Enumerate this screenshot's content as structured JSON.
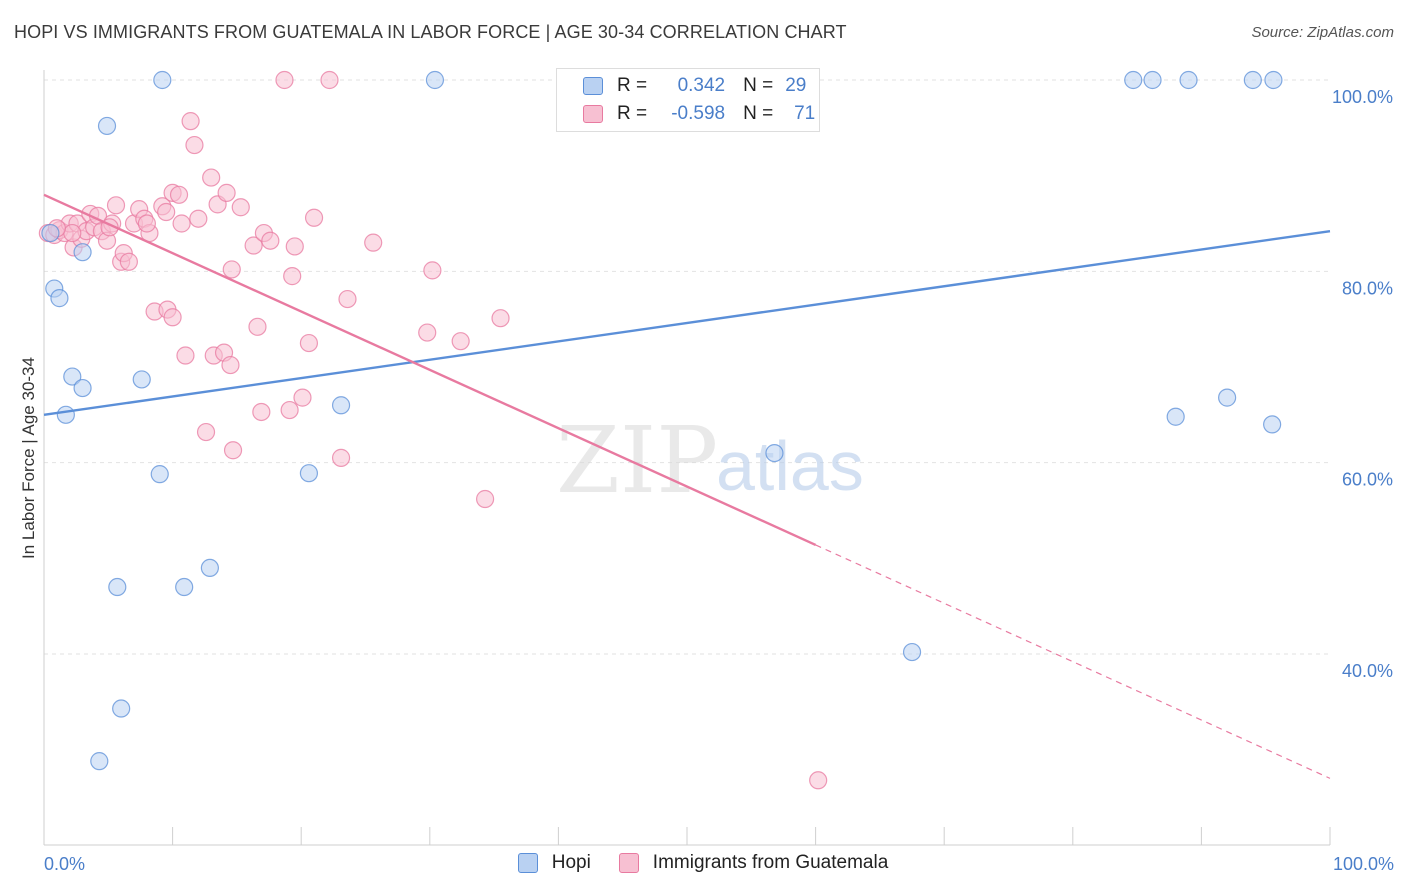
{
  "title": "HOPI VS IMMIGRANTS FROM GUATEMALA IN LABOR FORCE | AGE 30-34 CORRELATION CHART",
  "source": "Source: ZipAtlas.com",
  "watermark": {
    "zip": "ZIP",
    "atlas": "atlas"
  },
  "legend": {
    "r_label": "R =",
    "n_label": "N =",
    "rows": [
      {
        "r": "0.342",
        "n": "29"
      },
      {
        "r": "-0.598",
        "n": "71"
      }
    ]
  },
  "chart_data": {
    "type": "scatter",
    "title": "HOPI VS IMMIGRANTS FROM GUATEMALA IN LABOR FORCE | AGE 30-34 CORRELATION CHART",
    "xlabel": "",
    "ylabel": "In Labor Force | Age 30-34",
    "xlim": [
      0,
      100
    ],
    "ylim": [
      20,
      103
    ],
    "x_tick_labels": [
      "0.0%",
      "100.0%"
    ],
    "y_ticks": [
      40,
      60,
      80,
      100
    ],
    "y_tick_labels": [
      "40.0%",
      "60.0%",
      "80.0%",
      "100.0%"
    ],
    "grid": true,
    "legend_position": "top-center",
    "series": [
      {
        "name": "Hopi",
        "color": "#5b8fd8",
        "fill": "#b9d1f2",
        "r": 0.342,
        "n": 29,
        "trend": {
          "x": [
            0,
            100
          ],
          "y": [
            65.0,
            84.2
          ],
          "dashed_from": null
        },
        "points": [
          [
            0.5,
            84.0
          ],
          [
            3.0,
            82.0
          ],
          [
            0.8,
            78.2
          ],
          [
            1.2,
            77.2
          ],
          [
            2.2,
            69.0
          ],
          [
            1.7,
            65.0
          ],
          [
            3.0,
            67.8
          ],
          [
            4.9,
            95.2
          ],
          [
            7.6,
            68.7
          ],
          [
            9.0,
            58.8
          ],
          [
            9.2,
            100.0
          ],
          [
            5.7,
            47.0
          ],
          [
            10.9,
            47.0
          ],
          [
            12.9,
            49.0
          ],
          [
            6.0,
            34.3
          ],
          [
            4.3,
            28.8
          ],
          [
            20.6,
            58.9
          ],
          [
            23.1,
            66.0
          ],
          [
            30.4,
            100.0
          ],
          [
            56.8,
            61.0
          ],
          [
            67.5,
            40.2
          ],
          [
            84.7,
            100.0
          ],
          [
            86.2,
            100.0
          ],
          [
            89.0,
            100.0
          ],
          [
            94.0,
            100.0
          ],
          [
            95.6,
            100.0
          ],
          [
            88.0,
            64.8
          ],
          [
            92.0,
            66.8
          ],
          [
            95.5,
            64.0
          ]
        ]
      },
      {
        "name": "Immigrants from Guatemala",
        "color": "#e87aa0",
        "fill": "#f7c0d2",
        "r": -0.598,
        "n": 71,
        "trend": {
          "x": [
            0,
            100
          ],
          "y": [
            88.0,
            27.0
          ],
          "dashed_from": 60
        },
        "points": [
          [
            0.3,
            84.0
          ],
          [
            0.8,
            83.8
          ],
          [
            1.2,
            84.3
          ],
          [
            1.6,
            84.0
          ],
          [
            2.0,
            85.0
          ],
          [
            2.3,
            82.5
          ],
          [
            2.6,
            85.0
          ],
          [
            2.9,
            83.4
          ],
          [
            3.3,
            84.2
          ],
          [
            3.6,
            86.0
          ],
          [
            3.9,
            84.6
          ],
          [
            4.2,
            85.8
          ],
          [
            4.5,
            84.2
          ],
          [
            4.9,
            83.2
          ],
          [
            5.3,
            85.0
          ],
          [
            5.6,
            86.9
          ],
          [
            6.0,
            81.0
          ],
          [
            6.2,
            81.9
          ],
          [
            6.6,
            81.0
          ],
          [
            7.0,
            85.0
          ],
          [
            7.4,
            86.5
          ],
          [
            7.8,
            85.5
          ],
          [
            8.2,
            84.0
          ],
          [
            8.6,
            75.8
          ],
          [
            9.2,
            86.8
          ],
          [
            9.5,
            86.2
          ],
          [
            9.6,
            76.0
          ],
          [
            10.0,
            75.2
          ],
          [
            10.0,
            88.2
          ],
          [
            10.5,
            88.0
          ],
          [
            10.7,
            85.0
          ],
          [
            11.0,
            71.2
          ],
          [
            11.4,
            95.7
          ],
          [
            11.7,
            93.2
          ],
          [
            12.0,
            85.5
          ],
          [
            12.6,
            63.2
          ],
          [
            13.0,
            89.8
          ],
          [
            13.2,
            71.2
          ],
          [
            13.5,
            87.0
          ],
          [
            14.0,
            71.5
          ],
          [
            14.2,
            88.2
          ],
          [
            14.5,
            70.2
          ],
          [
            14.6,
            80.2
          ],
          [
            14.7,
            61.3
          ],
          [
            15.3,
            86.7
          ],
          [
            16.3,
            82.7
          ],
          [
            16.6,
            74.2
          ],
          [
            16.9,
            65.3
          ],
          [
            17.1,
            84.0
          ],
          [
            17.6,
            83.2
          ],
          [
            18.7,
            100.0
          ],
          [
            19.1,
            65.5
          ],
          [
            19.3,
            79.5
          ],
          [
            19.5,
            82.6
          ],
          [
            20.1,
            66.8
          ],
          [
            20.6,
            72.5
          ],
          [
            21.0,
            85.6
          ],
          [
            22.2,
            100.0
          ],
          [
            23.1,
            60.5
          ],
          [
            23.6,
            77.1
          ],
          [
            25.6,
            83.0
          ],
          [
            29.8,
            73.6
          ],
          [
            30.2,
            80.1
          ],
          [
            32.4,
            72.7
          ],
          [
            34.3,
            56.2
          ],
          [
            35.5,
            75.1
          ],
          [
            60.2,
            26.8
          ],
          [
            5.1,
            84.6
          ],
          [
            8.0,
            85.0
          ],
          [
            2.2,
            84.0
          ],
          [
            1.0,
            84.5
          ]
        ]
      }
    ]
  }
}
